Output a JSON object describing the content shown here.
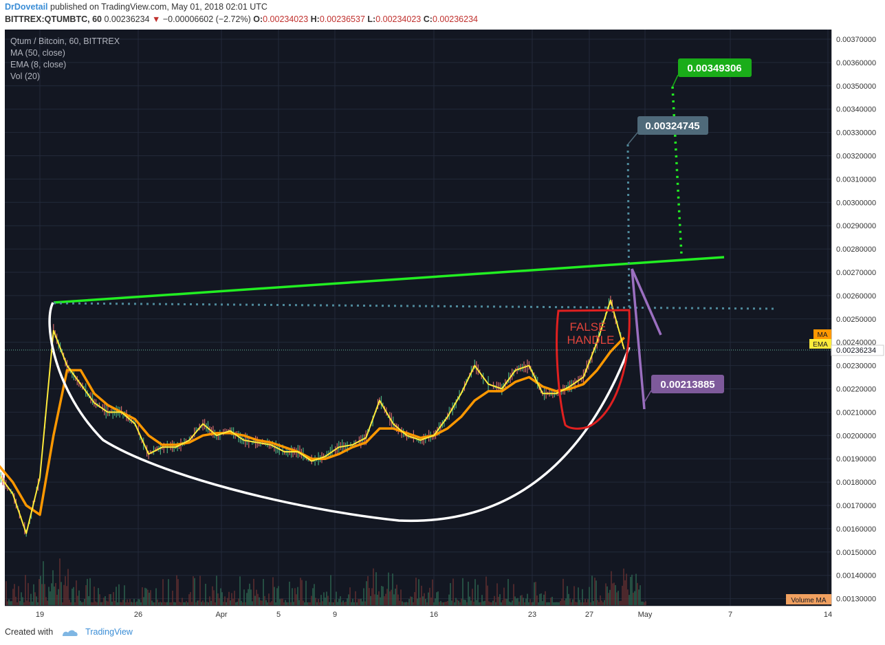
{
  "header": {
    "author": "DrDovetail",
    "published": "published on TradingView.com, May 01, 2018 02:01 UTC",
    "symbol": "BITTREX:QTUMBTC, 60",
    "last": "0.00236234",
    "arrow": "▼",
    "change": "−0.00006602 (−2.72%)",
    "o_label": "O:",
    "o_value": "0.00234023",
    "h_label": "H:",
    "h_value": "0.00236537",
    "l_label": "L:",
    "l_value": "0.00234023",
    "c_label": "C:",
    "c_value": "0.00236234"
  },
  "legend": {
    "title": "Qtum / Bitcoin, 60, BITTREX",
    "ma": "MA (50, close)",
    "ema": "EMA (8, close)",
    "vol": "Vol (20)"
  },
  "annotations": {
    "target_green": "0.00349306",
    "target_blue": "0.00324745",
    "purple": "0.00213885",
    "false_handle_line1": "FALSE",
    "false_handle_line2": "HANDLE",
    "ma_tag": "MA",
    "ema_tag": "EMA",
    "volume_ma_tag": "Volume MA"
  },
  "footer": {
    "created_with": "Created with",
    "brand": "TradingView"
  },
  "colors": {
    "background": "#131722",
    "ma": "#ff9800",
    "ema": "#ffeb3b",
    "neckline": "#22ee22",
    "cup": "#ffffff",
    "handle": "#e02020",
    "wedge": "#9b6fc0",
    "target_green": "#1aad19",
    "target_blue": "#4f6a7a",
    "purple_box": "#7e5a9b"
  },
  "chart_data": {
    "type": "line",
    "title": "Qtum / Bitcoin, 60, BITTREX",
    "x_ticks": [
      "19",
      "26",
      "Apr",
      "5",
      "9",
      "16",
      "23",
      "27",
      "May",
      "7",
      "14"
    ],
    "y_ticks": [
      "0.00370000",
      "0.00360000",
      "0.00350000",
      "0.00340000",
      "0.00330000",
      "0.00320000",
      "0.00310000",
      "0.00300000",
      "0.00290000",
      "0.00280000",
      "0.00270000",
      "0.00260000",
      "0.00250000",
      "0.00240000",
      "0.00230000",
      "0.00220000",
      "0.00210000",
      "0.00200000",
      "0.00190000",
      "0.00180000",
      "0.00170000",
      "0.00160000",
      "0.00150000",
      "0.00140000",
      "0.00130000"
    ],
    "ylim": [
      0.00126,
      0.00375
    ],
    "last_price": 0.00236234,
    "series": [
      {
        "name": "EMA",
        "color": "#ffeb3b",
        "x": [
          "Mar 16",
          "Mar 17",
          "Mar 18",
          "Mar 19",
          "Mar 20",
          "Mar 21",
          "Mar 22",
          "Mar 23",
          "Mar 24",
          "Mar 25",
          "Mar 26",
          "Mar 27",
          "Mar 28",
          "Mar 29",
          "Mar 30",
          "Mar 31",
          "Apr 1",
          "Apr 2",
          "Apr 3",
          "Apr 4",
          "Apr 5",
          "Apr 6",
          "Apr 7",
          "Apr 8",
          "Apr 9",
          "Apr 10",
          "Apr 11",
          "Apr 12",
          "Apr 13",
          "Apr 14",
          "Apr 15",
          "Apr 16",
          "Apr 17",
          "Apr 18",
          "Apr 19",
          "Apr 20",
          "Apr 21",
          "Apr 22",
          "Apr 23",
          "Apr 24",
          "Apr 25",
          "Apr 26",
          "Apr 27",
          "Apr 28",
          "Apr 29",
          "Apr 30",
          "May 1"
        ],
        "values": [
          0.00183,
          0.00175,
          0.00158,
          0.00182,
          0.00245,
          0.0023,
          0.00222,
          0.00214,
          0.0021,
          0.0021,
          0.00205,
          0.00192,
          0.00195,
          0.00195,
          0.00198,
          0.00205,
          0.002,
          0.00202,
          0.00198,
          0.00197,
          0.00196,
          0.00193,
          0.00193,
          0.00189,
          0.00191,
          0.00195,
          0.00196,
          0.00199,
          0.00215,
          0.00205,
          0.002,
          0.00198,
          0.002,
          0.00208,
          0.00218,
          0.0023,
          0.00222,
          0.0022,
          0.00228,
          0.0023,
          0.00218,
          0.00218,
          0.00221,
          0.00225,
          0.0024,
          0.00258,
          0.00237
        ]
      },
      {
        "name": "MA",
        "color": "#ff9800",
        "x": [
          "Mar 16",
          "Mar 17",
          "Mar 18",
          "Mar 19",
          "Mar 20",
          "Mar 21",
          "Mar 22",
          "Mar 23",
          "Mar 24",
          "Mar 25",
          "Mar 26",
          "Mar 27",
          "Mar 28",
          "Mar 29",
          "Mar 30",
          "Mar 31",
          "Apr 1",
          "Apr 2",
          "Apr 3",
          "Apr 4",
          "Apr 5",
          "Apr 6",
          "Apr 7",
          "Apr 8",
          "Apr 9",
          "Apr 10",
          "Apr 11",
          "Apr 12",
          "Apr 13",
          "Apr 14",
          "Apr 15",
          "Apr 16",
          "Apr 17",
          "Apr 18",
          "Apr 19",
          "Apr 20",
          "Apr 21",
          "Apr 22",
          "Apr 23",
          "Apr 24",
          "Apr 25",
          "Apr 26",
          "Apr 27",
          "Apr 28",
          "Apr 29",
          "Apr 30",
          "May 1"
        ],
        "values": [
          0.00187,
          0.0018,
          0.0017,
          0.00166,
          0.002,
          0.00228,
          0.00228,
          0.00218,
          0.00213,
          0.0021,
          0.00207,
          0.002,
          0.00196,
          0.00196,
          0.00197,
          0.002,
          0.00201,
          0.00201,
          0.002,
          0.00198,
          0.00197,
          0.00195,
          0.00193,
          0.0019,
          0.0019,
          0.00192,
          0.00195,
          0.00197,
          0.00203,
          0.00203,
          0.00201,
          0.00199,
          0.002,
          0.00203,
          0.00208,
          0.00215,
          0.00219,
          0.00219,
          0.00223,
          0.00225,
          0.00221,
          0.00219,
          0.0022,
          0.00222,
          0.00228,
          0.00236,
          0.00242
        ]
      }
    ]
  }
}
